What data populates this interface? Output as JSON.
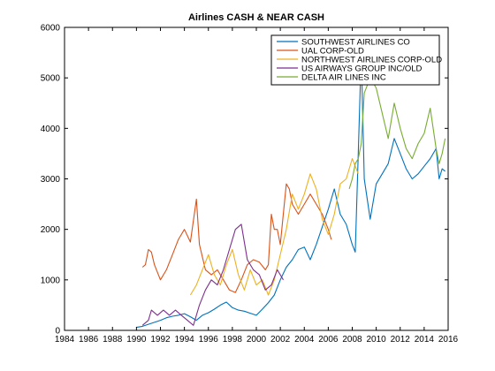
{
  "chart_data": {
    "type": "line",
    "title": "Airlines CASH & NEAR CASH",
    "xlabel": "",
    "ylabel": "",
    "xlim": [
      1984,
      2016
    ],
    "ylim": [
      0,
      6000
    ],
    "xticks": [
      "1984",
      "1986",
      "1988",
      "1990",
      "1992",
      "1994",
      "1996",
      "1998",
      "2000",
      "2002",
      "2004",
      "2006",
      "2008",
      "2010",
      "2012",
      "2014",
      "2016"
    ],
    "yticks": [
      "0",
      "1000",
      "2000",
      "3000",
      "4000",
      "5000",
      "6000"
    ],
    "legend_position": "top-right",
    "grid": false,
    "series": [
      {
        "name": "SOUTHWEST AIRLINES CO",
        "color": "#0072BD",
        "points": [
          [
            1990.0,
            60
          ],
          [
            1990.5,
            80
          ],
          [
            1991.0,
            120
          ],
          [
            1991.5,
            160
          ],
          [
            1992.0,
            200
          ],
          [
            1992.5,
            250
          ],
          [
            1993.0,
            280
          ],
          [
            1993.5,
            300
          ],
          [
            1994.0,
            330
          ],
          [
            1994.5,
            270
          ],
          [
            1995.0,
            200
          ],
          [
            1995.5,
            300
          ],
          [
            1996.0,
            350
          ],
          [
            1996.5,
            420
          ],
          [
            1997.0,
            500
          ],
          [
            1997.5,
            560
          ],
          [
            1998.0,
            450
          ],
          [
            1998.5,
            400
          ],
          [
            1999.0,
            380
          ],
          [
            1999.5,
            340
          ],
          [
            2000.0,
            300
          ],
          [
            2000.5,
            420
          ],
          [
            2001.0,
            550
          ],
          [
            2001.5,
            700
          ],
          [
            2002.0,
            1000
          ],
          [
            2002.5,
            1250
          ],
          [
            2003.0,
            1400
          ],
          [
            2003.5,
            1600
          ],
          [
            2004.0,
            1650
          ],
          [
            2004.5,
            1400
          ],
          [
            2005.0,
            1700
          ],
          [
            2005.5,
            2050
          ],
          [
            2006.0,
            2400
          ],
          [
            2006.5,
            2800
          ],
          [
            2007.0,
            2300
          ],
          [
            2007.5,
            2100
          ],
          [
            2008.0,
            1700
          ],
          [
            2008.25,
            1550
          ],
          [
            2008.5,
            3500
          ],
          [
            2008.75,
            5500
          ],
          [
            2009.0,
            3000
          ],
          [
            2009.5,
            2200
          ],
          [
            2010.0,
            2900
          ],
          [
            2010.5,
            3100
          ],
          [
            2011.0,
            3300
          ],
          [
            2011.5,
            3800
          ],
          [
            2012.0,
            3500
          ],
          [
            2012.5,
            3200
          ],
          [
            2013.0,
            3000
          ],
          [
            2013.5,
            3100
          ],
          [
            2014.0,
            3250
          ],
          [
            2014.5,
            3400
          ],
          [
            2015.0,
            3600
          ],
          [
            2015.25,
            3000
          ],
          [
            2015.5,
            3200
          ],
          [
            2015.75,
            3150
          ]
        ]
      },
      {
        "name": "UAL CORP-OLD",
        "color": "#D95319",
        "points": [
          [
            1990.5,
            1250
          ],
          [
            1990.75,
            1300
          ],
          [
            1991.0,
            1600
          ],
          [
            1991.25,
            1550
          ],
          [
            1991.5,
            1300
          ],
          [
            1992.0,
            1000
          ],
          [
            1992.5,
            1200
          ],
          [
            1993.0,
            1500
          ],
          [
            1993.5,
            1800
          ],
          [
            1994.0,
            2000
          ],
          [
            1994.5,
            1750
          ],
          [
            1995.0,
            2600
          ],
          [
            1995.25,
            1700
          ],
          [
            1995.75,
            1200
          ],
          [
            1996.25,
            1100
          ],
          [
            1996.75,
            1200
          ],
          [
            1997.25,
            1000
          ],
          [
            1997.75,
            800
          ],
          [
            1998.25,
            750
          ],
          [
            1998.75,
            1000
          ],
          [
            1999.25,
            1300
          ],
          [
            1999.75,
            1400
          ],
          [
            2000.25,
            1350
          ],
          [
            2000.75,
            1200
          ],
          [
            2001.0,
            1300
          ],
          [
            2001.25,
            2300
          ],
          [
            2001.5,
            2000
          ],
          [
            2001.75,
            2000
          ],
          [
            2002.0,
            1700
          ],
          [
            2002.5,
            2900
          ],
          [
            2002.75,
            2800
          ],
          [
            2003.0,
            2500
          ],
          [
            2003.5,
            2300
          ],
          [
            2004.0,
            2500
          ],
          [
            2004.5,
            2700
          ],
          [
            2005.0,
            2500
          ],
          [
            2005.5,
            2300
          ],
          [
            2006.0,
            2000
          ],
          [
            2006.25,
            1800
          ]
        ]
      },
      {
        "name": "NORTHWEST AIRLINES CORP-OLD",
        "color": "#EDB120",
        "points": [
          [
            1994.5,
            700
          ],
          [
            1995.0,
            900
          ],
          [
            1995.5,
            1200
          ],
          [
            1996.0,
            1500
          ],
          [
            1996.5,
            1100
          ],
          [
            1997.0,
            900
          ],
          [
            1997.5,
            1300
          ],
          [
            1998.0,
            1600
          ],
          [
            1998.5,
            1100
          ],
          [
            1999.0,
            800
          ],
          [
            1999.5,
            1200
          ],
          [
            2000.0,
            900
          ],
          [
            2000.5,
            1000
          ],
          [
            2001.0,
            700
          ],
          [
            2001.5,
            1000
          ],
          [
            2002.0,
            1500
          ],
          [
            2002.5,
            2000
          ],
          [
            2003.0,
            2700
          ],
          [
            2003.5,
            2400
          ],
          [
            2004.0,
            2700
          ],
          [
            2004.5,
            3100
          ],
          [
            2005.0,
            2800
          ],
          [
            2005.5,
            2200
          ],
          [
            2006.0,
            1900
          ],
          [
            2006.5,
            2300
          ],
          [
            2007.0,
            2900
          ],
          [
            2007.5,
            3000
          ],
          [
            2008.0,
            3400
          ],
          [
            2008.5,
            3100
          ]
        ]
      },
      {
        "name": "US AIRWAYS GROUP INC/OLD",
        "color": "#7E2F8E",
        "points": [
          [
            1990.5,
            100
          ],
          [
            1991.0,
            200
          ],
          [
            1991.25,
            400
          ],
          [
            1991.75,
            300
          ],
          [
            1992.25,
            400
          ],
          [
            1992.75,
            300
          ],
          [
            1993.25,
            400
          ],
          [
            1993.75,
            300
          ],
          [
            1994.25,
            200
          ],
          [
            1994.75,
            100
          ],
          [
            1995.25,
            500
          ],
          [
            1995.75,
            800
          ],
          [
            1996.25,
            1000
          ],
          [
            1996.75,
            900
          ],
          [
            1997.25,
            1200
          ],
          [
            1997.75,
            1600
          ],
          [
            1998.25,
            2000
          ],
          [
            1998.75,
            2100
          ],
          [
            1999.25,
            1400
          ],
          [
            1999.75,
            1200
          ],
          [
            2000.25,
            1100
          ],
          [
            2000.75,
            800
          ],
          [
            2001.25,
            900
          ],
          [
            2001.75,
            1200
          ],
          [
            2002.25,
            1000
          ]
        ]
      },
      {
        "name": "DELTA AIR LINES INC",
        "color": "#77AC30",
        "points": [
          [
            2007.75,
            2800
          ],
          [
            2008.0,
            3000
          ],
          [
            2008.25,
            3300
          ],
          [
            2008.5,
            3400
          ],
          [
            2008.75,
            3700
          ],
          [
            2009.0,
            4700
          ],
          [
            2009.5,
            5000
          ],
          [
            2010.0,
            4800
          ],
          [
            2010.5,
            4300
          ],
          [
            2011.0,
            3800
          ],
          [
            2011.5,
            4500
          ],
          [
            2012.0,
            4000
          ],
          [
            2012.5,
            3600
          ],
          [
            2013.0,
            3400
          ],
          [
            2013.5,
            3700
          ],
          [
            2014.0,
            3900
          ],
          [
            2014.5,
            4400
          ],
          [
            2015.0,
            3600
          ],
          [
            2015.25,
            3300
          ],
          [
            2015.5,
            3500
          ],
          [
            2015.75,
            3800
          ]
        ]
      }
    ]
  }
}
